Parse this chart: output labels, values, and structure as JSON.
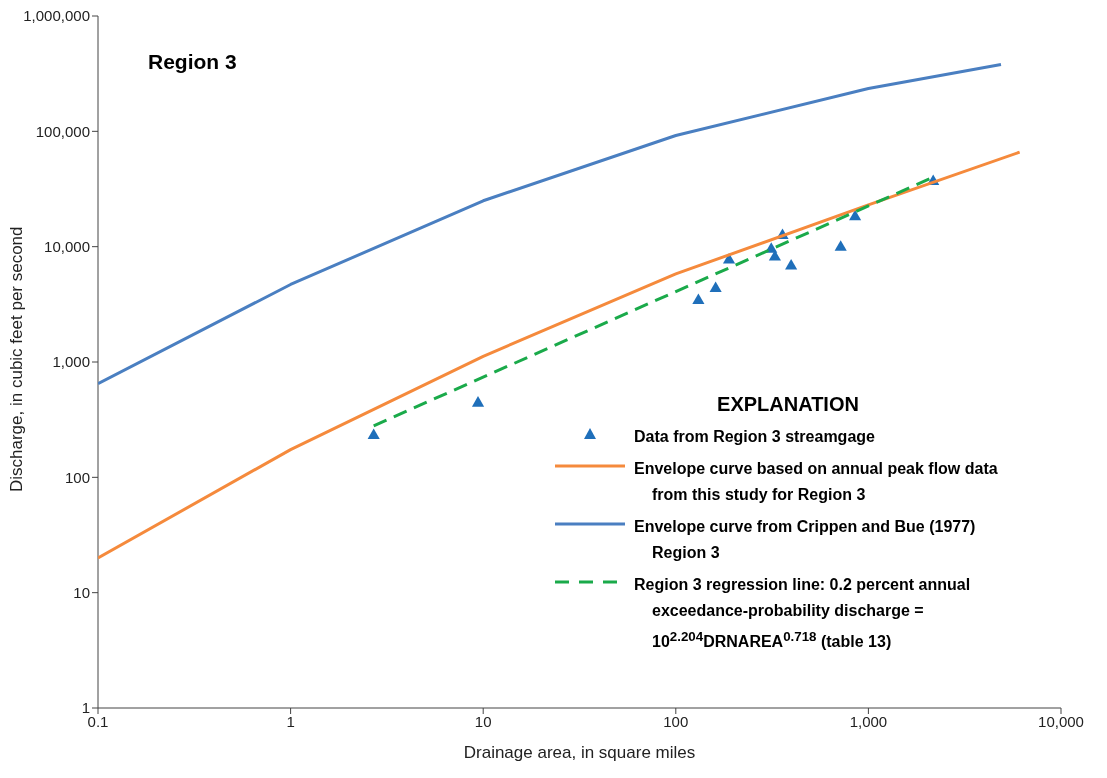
{
  "chart_data": {
    "type": "scatter",
    "title": "Region 3",
    "xlabel": "Drainage area, in square miles",
    "ylabel": "Discharge, in cubic feet per second",
    "log": "xy",
    "grid": false,
    "legend": "bottom right",
    "legend_title": "EXPLANATION",
    "xlim": [
      0.1,
      10000
    ],
    "xticks": [
      0.1,
      1,
      10,
      100,
      {
        "value": 1000,
        "label": "1,000"
      },
      {
        "value": 10000,
        "label": "10,000"
      }
    ],
    "ylim": [
      1,
      1000000
    ],
    "yticks": [
      1,
      10,
      100,
      {
        "value": 1000,
        "label": "1,000"
      },
      {
        "value": 10000,
        "label": "10,000"
      },
      {
        "value": 100000,
        "label": "100,000"
      },
      {
        "value": 1000000,
        "label": "1,000,000"
      }
    ],
    "series": [
      {
        "name": "Data from Region 3 streamgage",
        "marker": "triangle",
        "color": "#1f6fba",
        "x": [
          2.7,
          9.4,
          131,
          161,
          189,
          313,
          327,
          358,
          397,
          718,
          853,
          2170
        ],
        "values": [
          230,
          440,
          3420,
          4330,
          7650,
          9500,
          8120,
          12500,
          6800,
          9900,
          18200,
          36800
        ]
      },
      {
        "name": "Envelope curve based on annual peak flow data from this study for Region 3",
        "type": "line",
        "marker": "none",
        "line_style": "solid",
        "color": "#f58a3c",
        "x": [
          0.1,
          1,
          10,
          100,
          1000,
          6100
        ],
        "values": [
          20,
          174,
          1120,
          5800,
          23000,
          66000
        ]
      },
      {
        "name": "Envelope curve from Crippen and Bue (1977) Region 3",
        "type": "line",
        "marker": "none",
        "line_style": "solid",
        "color": "#4a7fc1",
        "x": [
          0.1,
          1,
          10,
          100,
          1000,
          4880
        ],
        "values": [
          650,
          4700,
          25000,
          92000,
          235000,
          380000
        ]
      },
      {
        "name": "Region 3 regression line: 0.2 percent annual exceedance-probability discharge = 10$^{2.204}$DRNAREA$^{0.718}$ (table 13)",
        "type": "line",
        "marker": "none",
        "line_style": "dashed",
        "color": "#1aaa4a",
        "x": [
          2.7,
          2170
        ],
        "values": [
          280,
          40000
        ]
      }
    ]
  }
}
